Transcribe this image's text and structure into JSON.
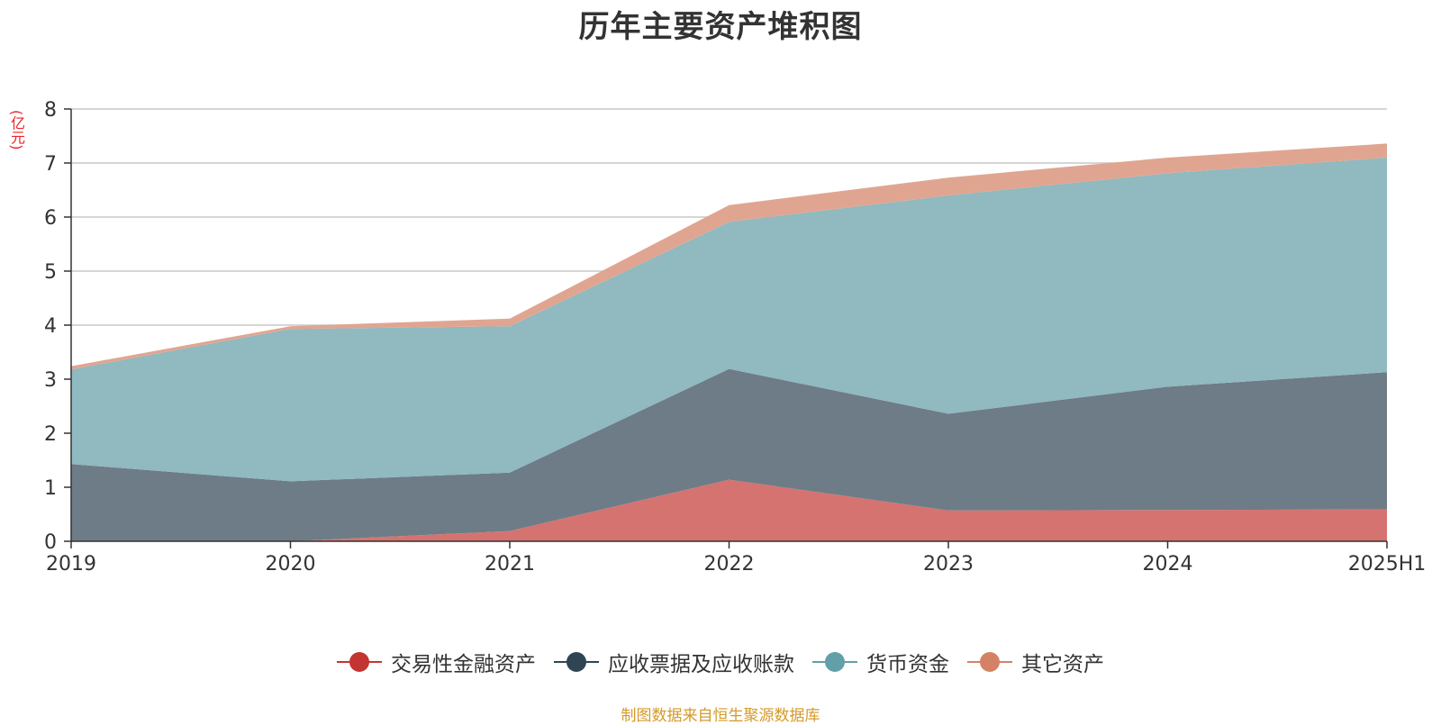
{
  "chart_data": {
    "type": "area",
    "stacked": true,
    "title": "历年主要资产堆积图",
    "ylabel": "(亿元)",
    "xlabel": "",
    "categories": [
      "2019",
      "2020",
      "2021",
      "2022",
      "2023",
      "2024",
      "2025H1"
    ],
    "ylim": [
      0,
      8
    ],
    "yticks": [
      "0",
      "1",
      "2",
      "3",
      "4",
      "5",
      "6",
      "7",
      "8"
    ],
    "grid": true,
    "legend_position": "bottom",
    "series": [
      {
        "name": "交易性金融资产",
        "color": "#d57370",
        "marker_color": "#c23531",
        "values": [
          0.0,
          0.0,
          0.19,
          1.14,
          0.57,
          0.58,
          0.59
        ]
      },
      {
        "name": "应收票据及应收账款",
        "color": "#6e7c87",
        "marker_color": "#2f4554",
        "values": [
          1.43,
          1.11,
          1.08,
          2.05,
          1.79,
          2.28,
          2.54
        ]
      },
      {
        "name": "货币资金",
        "color": "#90b9c0",
        "marker_color": "#61a0a8",
        "values": [
          1.75,
          2.82,
          2.71,
          2.72,
          4.04,
          3.95,
          3.97
        ]
      },
      {
        "name": "其它资产",
        "color": "#e0a591",
        "marker_color": "#d48265",
        "values": [
          0.06,
          0.05,
          0.14,
          0.31,
          0.33,
          0.29,
          0.26
        ]
      }
    ]
  },
  "footer": {
    "source": "制图数据来自恒生聚源数据库"
  }
}
